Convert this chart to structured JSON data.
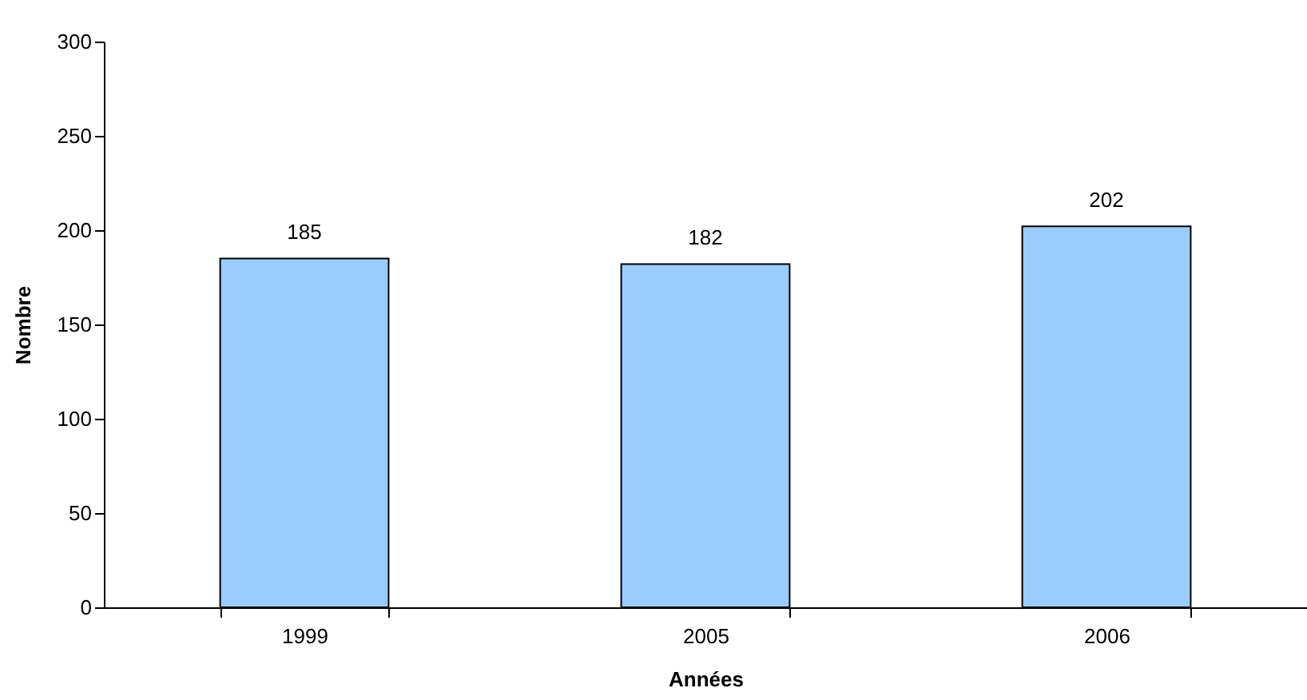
{
  "chart_data": {
    "type": "bar",
    "xlabel": "Années",
    "ylabel": "Nombre",
    "categories": [
      "1999",
      "2005",
      "2006"
    ],
    "values": [
      185,
      182,
      202
    ],
    "color": "#99ccff",
    "ylim": [
      0,
      300
    ],
    "yticks": [
      0,
      50,
      100,
      150,
      200,
      250,
      300
    ],
    "grid": false,
    "data_labels": true
  }
}
